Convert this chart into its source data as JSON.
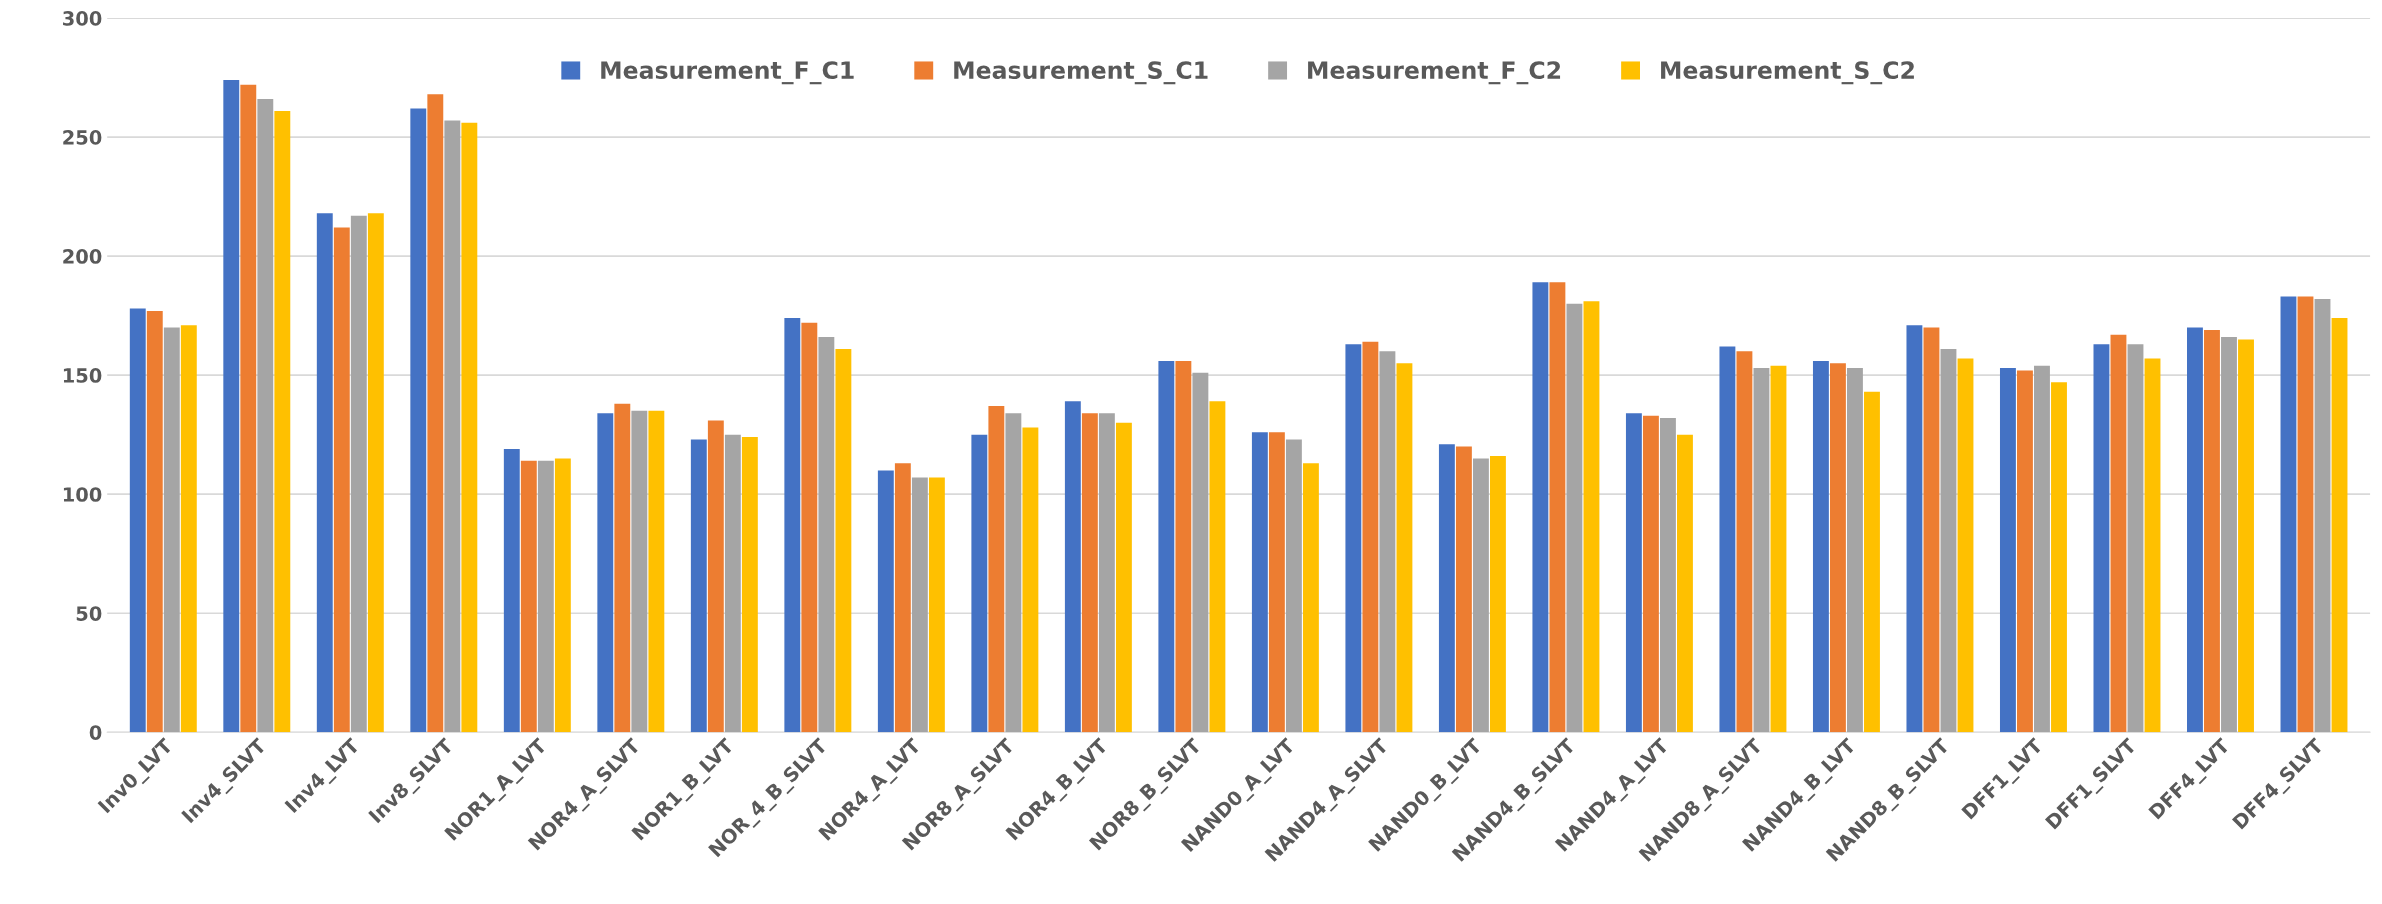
{
  "chart_data": {
    "type": "bar",
    "categories": [
      "Inv0_LVT",
      "Inv4_SLVT",
      "Inv4_LVT",
      "Inv8_SLVT",
      "NOR1_A_LVT",
      "NOR4_A_SLVT",
      "NOR1_B_LVT",
      "NOR_4_B_SLVT",
      "NOR4_A_LVT",
      "NOR8_A_SLVT",
      "NOR4_B_LVT",
      "NOR8_B_SLVT",
      "NAND0_A_LVT",
      "NAND4_A_SLVT",
      "NAND0_B_LVT",
      "NAND4_B_SLVT",
      "NAND4_A_LVT",
      "NAND8_A_SLVT",
      "NAND4_B_LVT",
      "NAND8_B_SLVT",
      "DFF1_LVT",
      "DFF1_SLVT",
      "DFF4_LVT",
      "DFF4_SLVT"
    ],
    "series": [
      {
        "name": "Measurement_F_C1",
        "color": "#4472c4",
        "values": [
          178,
          274,
          218,
          262,
          119,
          134,
          123,
          174,
          110,
          125,
          139,
          156,
          126,
          163,
          121,
          189,
          134,
          162,
          156,
          171,
          153,
          163,
          170,
          183
        ]
      },
      {
        "name": "Measurement_S_C1",
        "color": "#ed7d31",
        "values": [
          177,
          272,
          212,
          268,
          114,
          138,
          131,
          172,
          113,
          137,
          134,
          156,
          126,
          164,
          120,
          189,
          133,
          160,
          155,
          170,
          152,
          167,
          169,
          183
        ]
      },
      {
        "name": "Measurement_F_C2",
        "color": "#a5a5a5",
        "values": [
          170,
          266,
          217,
          257,
          114,
          135,
          125,
          166,
          107,
          134,
          134,
          151,
          123,
          160,
          115,
          180,
          132,
          153,
          153,
          161,
          154,
          163,
          166,
          182
        ]
      },
      {
        "name": "Measurement_S_C2",
        "color": "#ffc000",
        "values": [
          171,
          261,
          218,
          256,
          115,
          135,
          124,
          161,
          107,
          128,
          130,
          139,
          113,
          155,
          116,
          181,
          125,
          154,
          143,
          157,
          147,
          157,
          165,
          174
        ]
      }
    ],
    "ylim": [
      0,
      300
    ],
    "yticks": [
      0,
      50,
      100,
      150,
      200,
      250,
      300
    ],
    "grid": "y",
    "legend": "top"
  }
}
